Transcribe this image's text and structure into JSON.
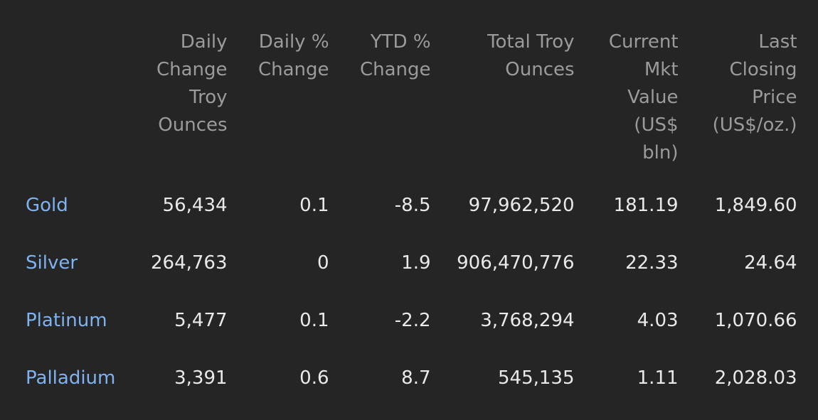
{
  "colors": {
    "background": "#252525",
    "header_text": "#9b9b9b",
    "value_text": "#e9e9e9",
    "metal_name": "#7fb2f0"
  },
  "table": {
    "headers": [
      {
        "lines": [
          ""
        ]
      },
      {
        "lines": [
          "Daily",
          "Change",
          "Troy",
          "Ounces"
        ]
      },
      {
        "lines": [
          "Daily %",
          "Change"
        ]
      },
      {
        "lines": [
          "YTD %",
          "Change"
        ]
      },
      {
        "lines": [
          "Total Troy",
          "Ounces"
        ]
      },
      {
        "lines": [
          "Current",
          "Mkt",
          "Value",
          "(US$",
          "bln)"
        ]
      },
      {
        "lines": [
          "Last",
          "Closing",
          "Price",
          "(US$/oz.)"
        ]
      }
    ],
    "rows": [
      {
        "name": "Gold",
        "cells": [
          "56,434",
          "0.1",
          "-8.5",
          "97,962,520",
          "181.19",
          "1,849.60"
        ]
      },
      {
        "name": "Silver",
        "cells": [
          "264,763",
          "0",
          "1.9",
          "906,470,776",
          "22.33",
          "24.64"
        ]
      },
      {
        "name": "Platinum",
        "cells": [
          "5,477",
          "0.1",
          "-2.2",
          "3,768,294",
          "4.03",
          "1,070.66"
        ]
      },
      {
        "name": "Palladium",
        "cells": [
          "3,391",
          "0.6",
          "8.7",
          "545,135",
          "1.11",
          "2,028.03"
        ]
      }
    ]
  }
}
